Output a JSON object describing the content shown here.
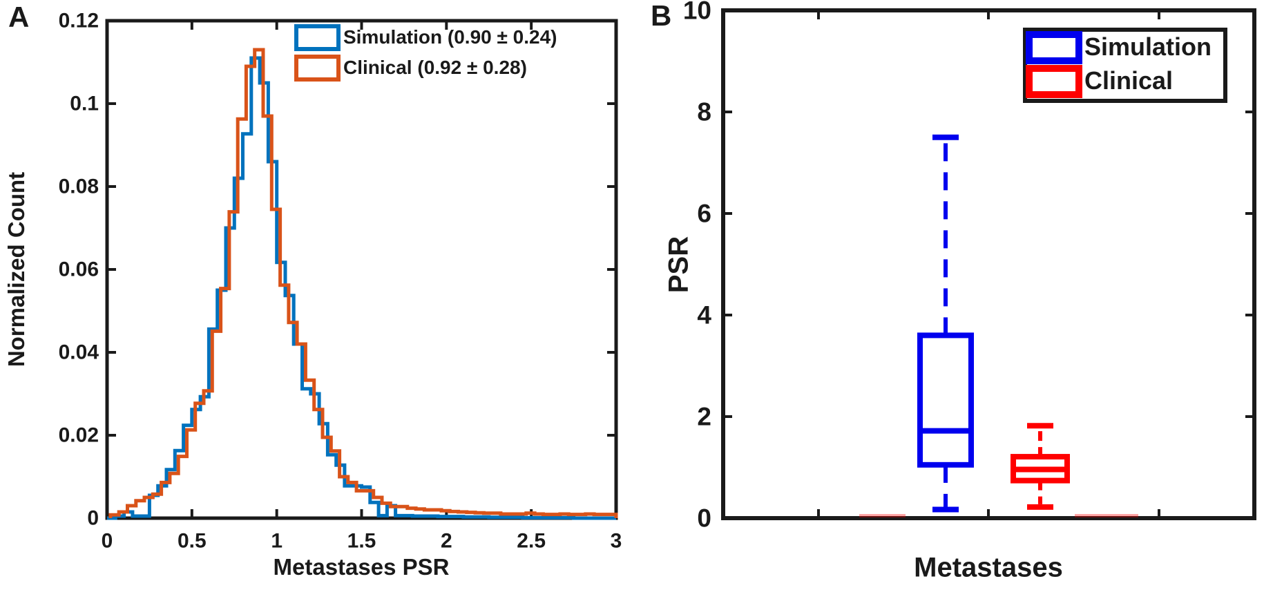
{
  "figure": {
    "background": "#ffffff",
    "axis_color": "#1a1a1a",
    "panel_a": {
      "label": "A",
      "x_label": "Metastases PSR",
      "y_label": "Normalized Count",
      "x_tick_labels": [
        "0",
        "0.5",
        "1",
        "1.5",
        "2",
        "2.5",
        "3"
      ],
      "y_tick_labels": [
        "0",
        "0.02",
        "0.04",
        "0.06",
        "0.08",
        "0.1",
        "0.12"
      ],
      "legend": [
        {
          "label": "Simulation (0.90 ± 0.24)",
          "color": "#0072BD"
        },
        {
          "label": "Clinical (0.92 ± 0.28)",
          "color": "#D95319"
        }
      ]
    },
    "panel_b": {
      "label": "B",
      "x_label": "Metastases",
      "y_label": "PSR",
      "y_tick_labels": [
        "0",
        "2",
        "4",
        "6",
        "8",
        "10"
      ],
      "legend": [
        {
          "label": "Simulation",
          "color": "#0000EE"
        },
        {
          "label": "Clinical",
          "color": "#FF0000"
        }
      ]
    }
  },
  "chart_data": [
    {
      "type": "histogram-step",
      "title": "",
      "xlabel": "Metastases PSR",
      "ylabel": "Normalized Count",
      "xlim": [
        0,
        3
      ],
      "ylim": [
        0,
        0.12
      ],
      "x_ticks": [
        0,
        0.5,
        1,
        1.5,
        2,
        2.5,
        3
      ],
      "y_ticks": [
        0,
        0.02,
        0.04,
        0.06,
        0.08,
        0.1,
        0.12
      ],
      "grid": false,
      "legend_position": "top-right",
      "bin_width": 0.05,
      "series": [
        {
          "name": "Simulation (0.90 ± 0.24)",
          "color": "#0072BD",
          "mean": 0.9,
          "std": 0.24,
          "bin_start": 0.0,
          "values": [
            0,
            0.0005,
            0.0015,
            0.0005,
            0.0005,
            0.0055,
            0.0078,
            0.0117,
            0.0163,
            0.0224,
            0.0262,
            0.0293,
            0.0456,
            0.055,
            0.07,
            0.082,
            0.0927,
            0.111,
            0.105,
            0.086,
            0.0617,
            0.0537,
            0.042,
            0.0312,
            0.03,
            0.0228,
            0.0153,
            0.0128,
            0.0078,
            0.0078,
            0.0075,
            0.0038,
            0.0006,
            0.003,
            0.0006,
            0.0006,
            0.0005,
            0.0005,
            0.0005,
            0.0004,
            0.0004,
            0.0004,
            0.0003,
            0.0003,
            0.0003,
            0.0002,
            0.0002,
            0.0002,
            0.0002,
            0.0001,
            0.0001,
            0.0001,
            0.0001,
            0.0001,
            0.0001,
            0,
            0,
            0,
            0,
            0
          ]
        },
        {
          "name": "Clinical (0.92 ± 0.28)",
          "color": "#D95319",
          "mean": 0.92,
          "std": 0.28,
          "bin_start": 0.02,
          "values": [
            0.0008,
            0.0015,
            0.003,
            0.0042,
            0.005,
            0.0058,
            0.0086,
            0.0108,
            0.0149,
            0.0213,
            0.0277,
            0.0307,
            0.0451,
            0.0554,
            0.0739,
            0.0963,
            0.109,
            0.113,
            0.097,
            0.0745,
            0.0562,
            0.0472,
            0.042,
            0.0333,
            0.0262,
            0.0195,
            0.0162,
            0.01,
            0.0086,
            0.0066,
            0.0066,
            0.005,
            0.0036,
            0.0028,
            0.0028,
            0.0024,
            0.0022,
            0.002,
            0.002,
            0.0018,
            0.0016,
            0.0015,
            0.0014,
            0.0013,
            0.0012,
            0.0012,
            0.001,
            0.001,
            0.001,
            0.0012,
            0.001,
            0.0009,
            0.0009,
            0.001,
            0.0009,
            0.0009,
            0.001,
            0.0009,
            0.0009,
            0.0009
          ]
        }
      ]
    },
    {
      "type": "boxplot",
      "group_label": "Metastases",
      "ylabel": "PSR",
      "ylim": [
        0,
        10
      ],
      "y_ticks": [
        0,
        2,
        4,
        6,
        8,
        10
      ],
      "grid": false,
      "legend_position": "top-right",
      "series": [
        {
          "name": "Simulation",
          "color": "#0000EE",
          "q1": 1.05,
          "median": 1.72,
          "q3": 3.6,
          "whisker_low": 0.17,
          "whisker_high": 7.5
        },
        {
          "name": "Clinical",
          "color": "#FF0000",
          "q1": 0.74,
          "median": 0.96,
          "q3": 1.21,
          "whisker_low": 0.22,
          "whisker_high": 1.82
        }
      ]
    }
  ]
}
